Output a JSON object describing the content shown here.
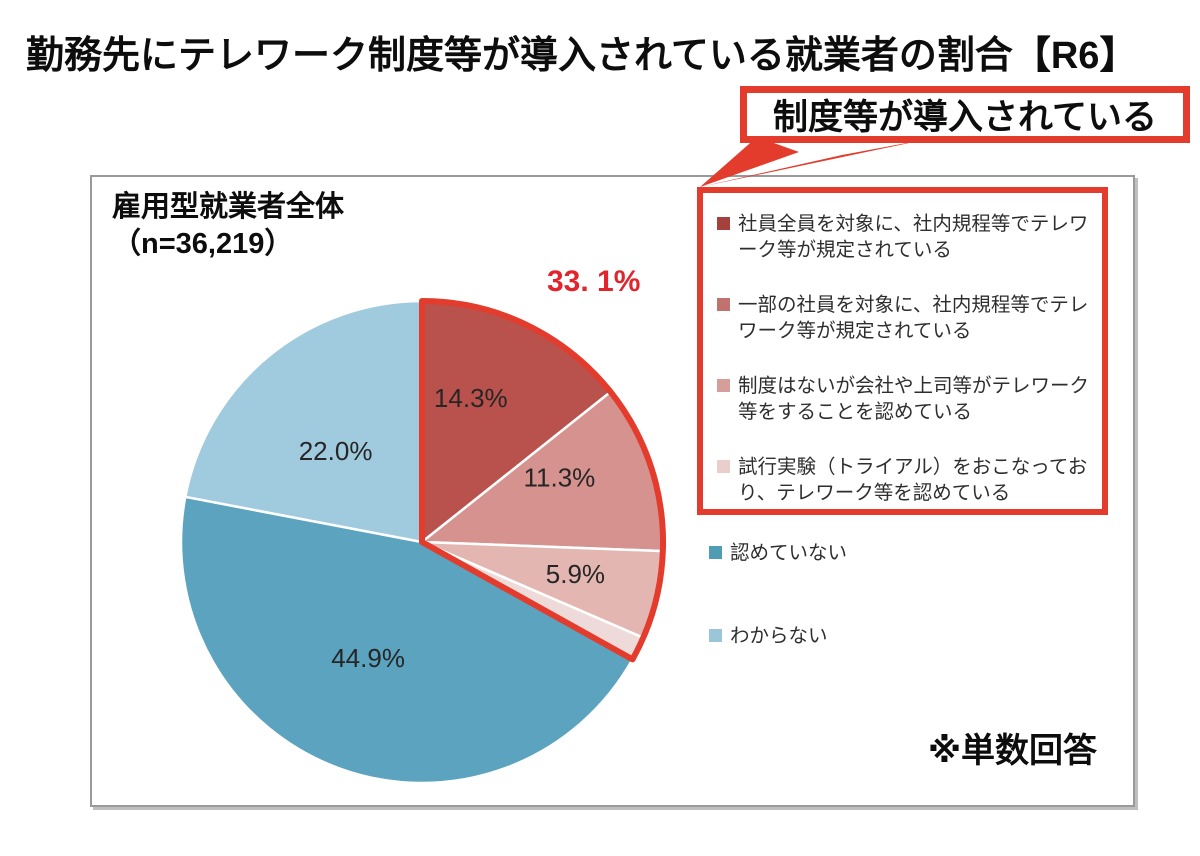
{
  "page": {
    "title": "勤務先にテレワーク制度等が導入されている就業者の割合【R6】",
    "callout": "制度等が導入されている",
    "note": "※単数回答"
  },
  "panel": {
    "group_label": "雇用型就業者全体",
    "group_sublabel": "（n=36,219）"
  },
  "theme": {
    "accent_red": "#e33b2c",
    "highlight_text_red": "#e0262c"
  },
  "chart_data": {
    "type": "pie",
    "title": "雇用型就業者全体（n=36,219）",
    "unit": "%",
    "start_angle_deg": 0,
    "direction": "clockwise",
    "slices": [
      {
        "label": "社員全員を対象に、社内規程等でテレワーク等が規定されている",
        "value": 14.3,
        "display": "14.3%",
        "color": "#b9514c",
        "marker_color": "#a5413d"
      },
      {
        "label": "一部の社員を対象に、社内規程等でテレワーク等が規定されている",
        "value": 11.3,
        "display": "11.3%",
        "color": "#d6928f",
        "marker_color": "#c1726f"
      },
      {
        "label": "制度はないが会社や上司等がテレワーク等をすることを認めている",
        "value": 5.9,
        "display": "5.9%",
        "color": "#e3b6b2",
        "marker_color": "#d69e9b"
      },
      {
        "label": "試行実験（トライアル）をおこなっており、テレワーク等を認めている",
        "value": 1.6,
        "display": "1.6%",
        "color": "#eedad8",
        "marker_color": "#e9cecc"
      },
      {
        "label": "認めていない",
        "value": 44.9,
        "display": "44.9%",
        "color": "#5ba3be",
        "marker_color": "#4f9cb4"
      },
      {
        "label": "わからない",
        "value": 22.0,
        "display": "22.0%",
        "color": "#a0cade",
        "marker_color": "#9bc6da"
      }
    ],
    "highlight": {
      "slice_indexes": [
        0,
        1,
        2,
        3
      ],
      "total_value": 33.1,
      "total_display": "33. 1%",
      "label": "制度等が導入されている",
      "color": "#e33b2c"
    },
    "legend_position": "right",
    "note": "※単数回答"
  }
}
